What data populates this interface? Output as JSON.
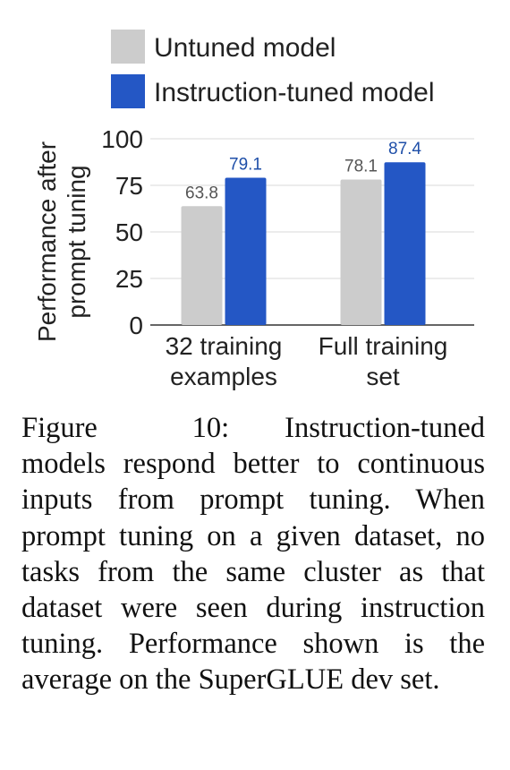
{
  "chart_data": {
    "type": "bar",
    "title": "",
    "xlabel": "",
    "ylabel": "Performance after prompt tuning",
    "ylabel_lines": [
      "Performance after",
      "prompt tuning"
    ],
    "ylim": [
      0,
      100
    ],
    "yticks": [
      0,
      25,
      50,
      75,
      100
    ],
    "grid": true,
    "legend_position": "top",
    "categories": [
      "32 training examples",
      "Full training set"
    ],
    "category_lines": [
      [
        "32 training",
        "examples"
      ],
      [
        "Full training",
        "set"
      ]
    ],
    "series": [
      {
        "name": "Untuned model",
        "color": "#cccccc",
        "label_color": "#555555",
        "values": [
          63.8,
          78.1
        ]
      },
      {
        "name": "Instruction-tuned model",
        "color": "#2457c5",
        "label_color": "#1f4fa8",
        "values": [
          79.1,
          87.4
        ]
      }
    ]
  },
  "caption": {
    "figure_label": "Figure 10:",
    "text": "Instruction-tuned models respond better to continuous inputs from prompt tuning. When prompt tuning on a given dataset, no tasks from the same cluster as that dataset were seen during instruction tuning. Performance shown is the average on the SuperGLUE dev set."
  }
}
